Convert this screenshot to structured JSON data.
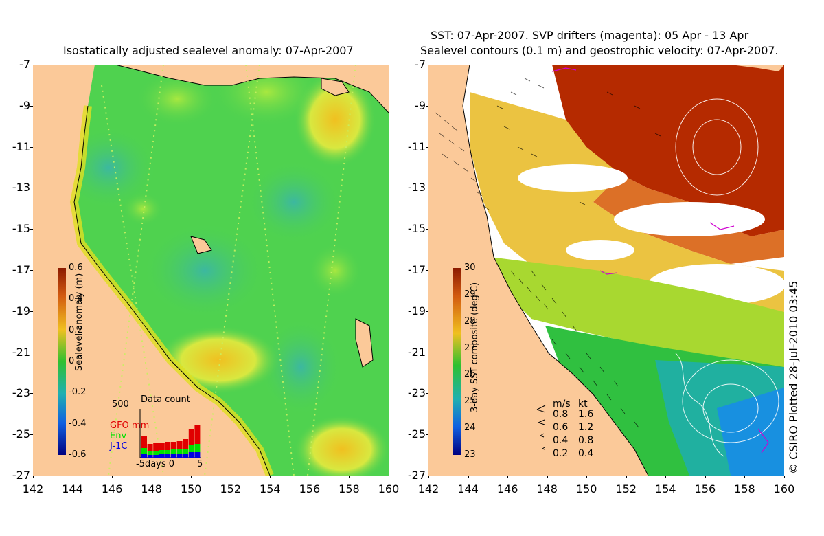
{
  "left_title": "Isostatically adjusted sealevel anomaly: 07-Apr-2007",
  "right_title_line1": "SST: 07-Apr-2007. SVP drifters (magenta): 05 Apr - 13 Apr",
  "right_title_line2": "Sealevel contours (0.1 m) and geostrophic velocity: 07-Apr-2007.",
  "lat_labels": [
    "-7",
    "-9",
    "-11",
    "-13",
    "-15",
    "-17",
    "-19",
    "-21",
    "-23",
    "-25",
    "-27"
  ],
  "lon_labels": [
    "142",
    "144",
    "146",
    "148",
    "150",
    "152",
    "154",
    "156",
    "158",
    "160"
  ],
  "left_colorbar": {
    "title": "Sealevel anomaly (m)",
    "ticks": [
      "0.6",
      "0.4",
      "0.2",
      "0",
      "-0.2",
      "-0.4",
      "-0.6"
    ]
  },
  "right_colorbar": {
    "title": "3-day SST composite (deg C)",
    "ticks": [
      "30",
      "29",
      "28",
      "27",
      "26",
      "25",
      "24",
      "23"
    ]
  },
  "data_count": {
    "title": "Data count",
    "max_label": "500",
    "axis_label": "-5days 0",
    "axis_end": "5",
    "legend": [
      {
        "label": "GFO mm",
        "color": "#e00000"
      },
      {
        "label": "Env",
        "color": "#00e000"
      },
      {
        "label": "J-1C",
        "color": "#0000e0"
      }
    ]
  },
  "velocity_legend": {
    "header_ms": "m/s",
    "header_kt": "kt",
    "rows": [
      {
        "ms": "0.8",
        "kt": "1.6"
      },
      {
        "ms": "0.6",
        "kt": "1.2"
      },
      {
        "ms": "0.4",
        "kt": "0.8"
      },
      {
        "ms": "0.2",
        "kt": "0.4"
      }
    ]
  },
  "copyright": "© CSIRO Plotted 28-Jul-2010 03:45",
  "colors": {
    "land": "#fbc999",
    "sea_green": "#4fd24f",
    "sea_yellow": "#e8e840",
    "sst_red": "#b52a00"
  }
}
